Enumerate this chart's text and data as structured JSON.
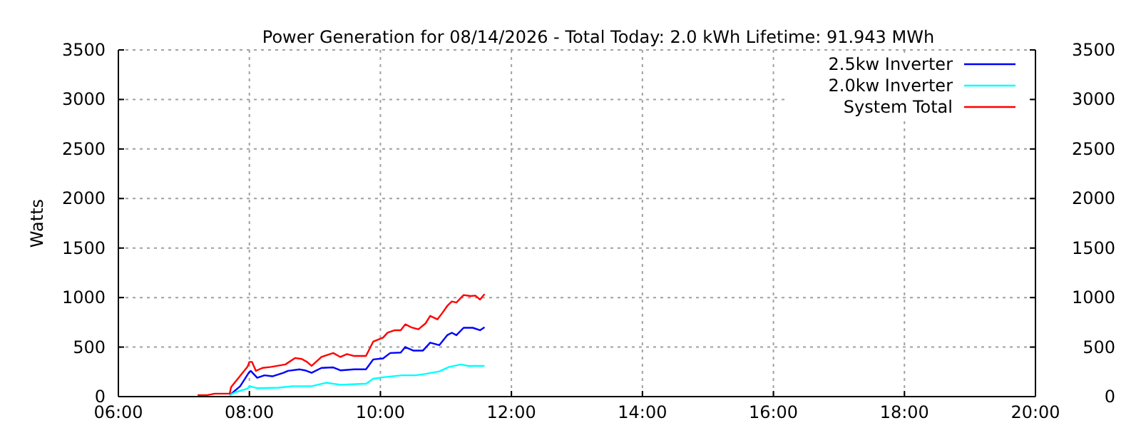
{
  "chart_data": {
    "type": "line",
    "title": "Power Generation for 08/14/2026 - Total Today: 2.0 kWh   Lifetime: 91.943 MWh",
    "ylabel": "Watts",
    "xlim": [
      6,
      20
    ],
    "xticks": [
      {
        "value": 6,
        "label": "06:00"
      },
      {
        "value": 8,
        "label": "08:00"
      },
      {
        "value": 10,
        "label": "10:00"
      },
      {
        "value": 12,
        "label": "12:00"
      },
      {
        "value": 14,
        "label": "14:00"
      },
      {
        "value": 16,
        "label": "16:00"
      },
      {
        "value": 18,
        "label": "18:00"
      },
      {
        "value": 20,
        "label": "20:00"
      }
    ],
    "ylim": [
      0,
      3500
    ],
    "yticks": [
      0,
      500,
      1000,
      1500,
      2000,
      2500,
      3000,
      3500
    ],
    "y2lim": [
      0,
      3500
    ],
    "y2ticks": [
      0,
      500,
      1000,
      1500,
      2000,
      2500,
      3000,
      3500
    ],
    "grid": true,
    "legend": "top right",
    "line_style": "solid",
    "marker": "none",
    "series": [
      {
        "name": "2.5kw Inverter",
        "color": "#0000ff",
        "x": [
          7.7,
          7.86,
          7.99,
          8.02,
          8.12,
          8.23,
          8.35,
          8.52,
          8.59,
          8.77,
          8.85,
          8.95,
          9.1,
          9.28,
          9.39,
          9.6,
          9.78,
          9.89,
          10.04,
          10.15,
          10.31,
          10.38,
          10.5,
          10.65,
          10.76,
          10.9,
          11.02,
          11.09,
          11.16,
          11.27,
          11.41,
          11.52,
          11.59
        ],
        "values": [
          15,
          105,
          240,
          260,
          190,
          215,
          205,
          240,
          260,
          275,
          265,
          240,
          290,
          295,
          265,
          275,
          275,
          375,
          385,
          440,
          445,
          500,
          465,
          465,
          545,
          520,
          620,
          645,
          620,
          695,
          695,
          670,
          700
        ]
      },
      {
        "name": "2.0kw Inverter",
        "color": "#00ffff",
        "x": [
          7.7,
          7.79,
          7.97,
          8.0,
          8.12,
          8.44,
          8.66,
          8.95,
          9.17,
          9.39,
          9.78,
          9.89,
          10.04,
          10.33,
          10.54,
          10.69,
          10.9,
          11.05,
          11.23,
          11.34,
          11.59
        ],
        "values": [
          15,
          45,
          80,
          105,
          85,
          90,
          105,
          105,
          140,
          120,
          130,
          180,
          195,
          215,
          215,
          230,
          255,
          300,
          325,
          310,
          310
        ]
      },
      {
        "name": "System Total",
        "color": "#ff0000",
        "x": [
          7.21,
          7.36,
          7.47,
          7.7,
          7.72,
          7.97,
          8.0,
          8.04,
          8.1,
          8.2,
          8.33,
          8.55,
          8.7,
          8.8,
          8.88,
          8.95,
          9.1,
          9.28,
          9.39,
          9.49,
          9.6,
          9.78,
          9.89,
          10.04,
          10.11,
          10.22,
          10.31,
          10.38,
          10.47,
          10.58,
          10.69,
          10.76,
          10.87,
          10.94,
          11.02,
          11.09,
          11.16,
          11.27,
          11.38,
          11.45,
          11.52,
          11.59
        ],
        "values": [
          15,
          15,
          30,
          30,
          95,
          300,
          350,
          350,
          260,
          290,
          300,
          325,
          390,
          380,
          350,
          310,
          400,
          440,
          400,
          430,
          410,
          410,
          555,
          595,
          645,
          670,
          670,
          730,
          700,
          680,
          740,
          815,
          780,
          840,
          915,
          960,
          950,
          1025,
          1015,
          1020,
          980,
          1035
        ]
      }
    ]
  }
}
